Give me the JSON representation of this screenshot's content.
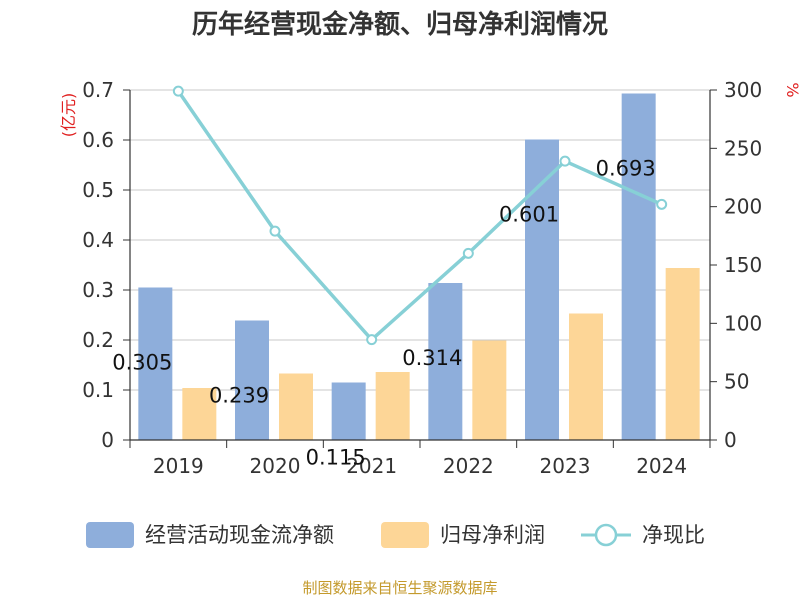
{
  "chart_data": {
    "type": "bar",
    "title": "历年经营现金净额、归母净利润情况",
    "categories": [
      "2019",
      "2020",
      "2021",
      "2022",
      "2023",
      "2024"
    ],
    "series": [
      {
        "name": "经营活动现金流净额",
        "type": "bar",
        "axis": "left",
        "color": "#8eaedb",
        "values": [
          0.305,
          0.239,
          0.115,
          0.314,
          0.601,
          0.693
        ],
        "labels": [
          "0.305",
          "0.239",
          "0.115",
          "0.314",
          "0.601",
          "0.693"
        ]
      },
      {
        "name": "归母净利润",
        "type": "bar",
        "axis": "left",
        "color": "#fdd697",
        "values": [
          0.104,
          0.133,
          0.136,
          0.199,
          0.253,
          0.344
        ]
      },
      {
        "name": "净现比",
        "type": "line",
        "axis": "right",
        "color": "#87d0d6",
        "values": [
          299,
          179,
          86,
          160,
          239,
          202
        ]
      }
    ],
    "ylabel_left": "(亿元)",
    "ylabel_right": "%",
    "ylim_left": [
      0,
      0.7
    ],
    "ylim_right": [
      0,
      300
    ],
    "yticks_left": [
      "0",
      "0.1",
      "0.2",
      "0.3",
      "0.4",
      "0.5",
      "0.6",
      "0.7"
    ],
    "yticks_right": [
      "0",
      "50",
      "100",
      "150",
      "200",
      "250",
      "300"
    ],
    "grid": true,
    "legend_position": "bottom"
  },
  "footer": {
    "source": "制图数据来自恒生聚源数据库"
  }
}
